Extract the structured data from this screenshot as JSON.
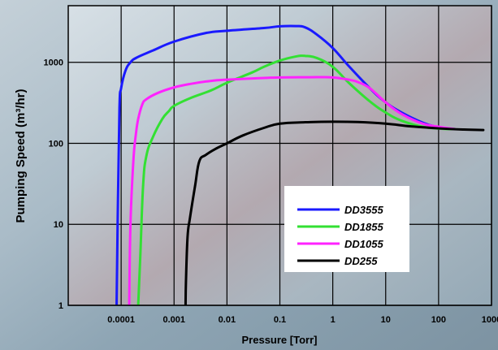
{
  "chart_data": {
    "type": "line",
    "title": "",
    "xlabel": "Pressure [Torr]",
    "ylabel": "Pumping Speed (m³/hr)",
    "x_scale": "log",
    "y_scale": "log",
    "xlim": [
      1e-05,
      1000
    ],
    "ylim": [
      1,
      5000
    ],
    "grid": true,
    "legend_position": "bottom-right",
    "x_ticks": [
      {
        "value": 0.0001,
        "label": "0.0001"
      },
      {
        "value": 0.001,
        "label": "0.001"
      },
      {
        "value": 0.01,
        "label": "0.01"
      },
      {
        "value": 0.1,
        "label": "0.1"
      },
      {
        "value": 1,
        "label": "1"
      },
      {
        "value": 10,
        "label": "10"
      },
      {
        "value": 100,
        "label": "100"
      },
      {
        "value": 1000,
        "label": "1000"
      }
    ],
    "y_ticks": [
      {
        "value": 1,
        "label": "1"
      },
      {
        "value": 10,
        "label": "10"
      },
      {
        "value": 100,
        "label": "100"
      },
      {
        "value": 1000,
        "label": "1000"
      }
    ],
    "series": [
      {
        "name": "DD3555",
        "color": "#1a1aff",
        "x": [
          8.2e-05,
          8.7e-05,
          9.3e-05,
          0.0001,
          0.00012,
          0.00015,
          0.0002,
          0.0004,
          0.001,
          0.004,
          0.01,
          0.05,
          0.1,
          0.2,
          0.3,
          0.5,
          1,
          2,
          5,
          10,
          20,
          50,
          100,
          200
        ],
        "y": [
          1,
          20,
          280,
          480,
          780,
          1000,
          1150,
          1400,
          1800,
          2300,
          2450,
          2650,
          2780,
          2800,
          2700,
          2200,
          1500,
          900,
          480,
          320,
          240,
          180,
          158,
          150
        ]
      },
      {
        "name": "DD1855",
        "color": "#33e033",
        "x": [
          0.00021,
          0.00023,
          0.00026,
          0.0003,
          0.0004,
          0.0006,
          0.0008,
          0.001,
          0.002,
          0.005,
          0.01,
          0.03,
          0.05,
          0.1,
          0.2,
          0.3,
          0.5,
          1,
          2,
          5,
          10,
          20,
          50,
          100,
          200
        ],
        "y": [
          1,
          4,
          30,
          70,
          120,
          200,
          250,
          290,
          360,
          450,
          560,
          750,
          880,
          1050,
          1180,
          1200,
          1130,
          880,
          560,
          330,
          240,
          190,
          160,
          152,
          150
        ]
      },
      {
        "name": "DD1055",
        "color": "#ff22ff",
        "x": [
          0.000142,
          0.00015,
          0.00017,
          0.00019,
          0.00021,
          0.00025,
          0.0003,
          0.0005,
          0.001,
          0.002,
          0.005,
          0.01,
          0.05,
          0.1,
          0.5,
          1,
          2,
          3,
          5,
          10,
          20,
          50,
          100,
          200
        ],
        "y": [
          1,
          10,
          60,
          130,
          200,
          300,
          350,
          420,
          490,
          540,
          590,
          610,
          640,
          650,
          655,
          650,
          610,
          570,
          480,
          320,
          230,
          175,
          160,
          150
        ]
      },
      {
        "name": "DD255",
        "color": "#000000",
        "x": [
          0.00165,
          0.00168,
          0.0018,
          0.002,
          0.0025,
          0.003,
          0.004,
          0.006,
          0.01,
          0.02,
          0.05,
          0.1,
          0.3,
          1,
          3,
          10,
          30,
          100,
          300,
          700
        ],
        "y": [
          1,
          2,
          7,
          12,
          30,
          60,
          72,
          85,
          100,
          125,
          155,
          175,
          182,
          185,
          183,
          175,
          162,
          153,
          148,
          146
        ]
      }
    ]
  }
}
